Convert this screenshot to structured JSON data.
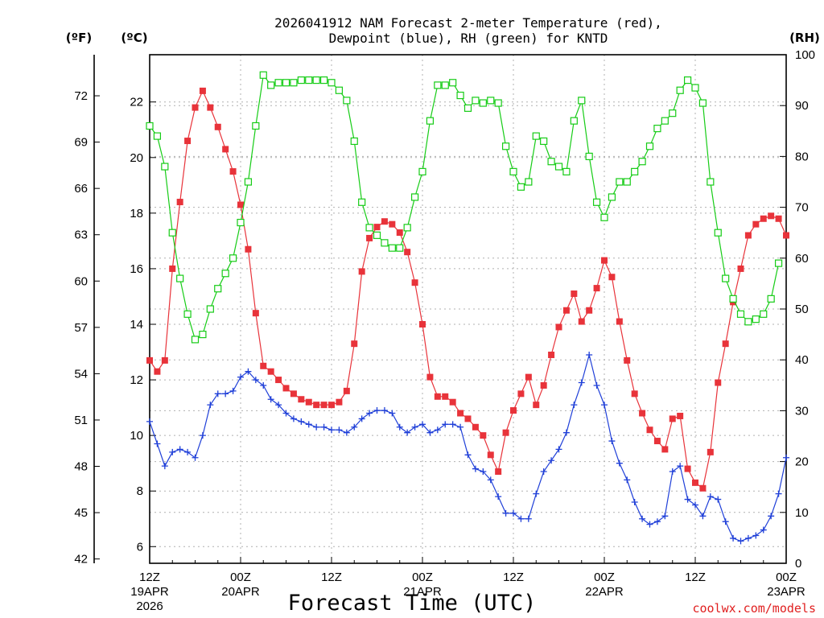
{
  "chart_data": {
    "type": "line",
    "title": "2026041912 NAM Forecast 2-meter Temperature (red),",
    "title_line2": "Dewpoint (blue), RH (green) for KNTD",
    "left_unit_f": "(ºF)",
    "left_unit_c": "(ºC)",
    "right_unit": "(RH)",
    "xlabel": "Forecast Time (UTC)",
    "credit": "coolwx.com/models",
    "x_range_hours": [
      0,
      84
    ],
    "x_ticks": [
      {
        "hour": 0,
        "lines": [
          "12Z",
          "19APR",
          "2026"
        ]
      },
      {
        "hour": 12,
        "lines": [
          "00Z",
          "20APR"
        ]
      },
      {
        "hour": 24,
        "lines": [
          "12Z"
        ]
      },
      {
        "hour": 36,
        "lines": [
          "00Z",
          "21APR"
        ]
      },
      {
        "hour": 48,
        "lines": [
          "12Z"
        ]
      },
      {
        "hour": 60,
        "lines": [
          "00Z",
          "22APR"
        ]
      },
      {
        "hour": 72,
        "lines": [
          "12Z"
        ]
      },
      {
        "hour": 84,
        "lines": [
          "00Z",
          "23APR"
        ]
      }
    ],
    "y_celsius": {
      "range": [
        5.4,
        23.7
      ],
      "ticks": [
        "6",
        "8",
        "10",
        "12",
        "14",
        "16",
        "18",
        "20",
        "22"
      ]
    },
    "y_fahrenheit": {
      "ticks": [
        "42",
        "45",
        "48",
        "51",
        "54",
        "57",
        "60",
        "63",
        "66",
        "69",
        "72"
      ]
    },
    "y_rh": {
      "range": [
        0,
        100
      ],
      "ticks": [
        "0",
        "10",
        "20",
        "30",
        "40",
        "50",
        "60",
        "70",
        "80",
        "90",
        "100"
      ]
    },
    "series": [
      {
        "name": "Temperature",
        "units": "C",
        "color": "#e8333a",
        "marker": "filled-square",
        "values": [
          12.7,
          12.3,
          12.7,
          16.0,
          18.4,
          20.6,
          21.8,
          22.4,
          21.8,
          21.1,
          20.3,
          19.5,
          18.3,
          16.7,
          14.4,
          12.5,
          12.3,
          12.0,
          11.7,
          11.5,
          11.3,
          11.2,
          11.1,
          11.1,
          11.1,
          11.2,
          11.6,
          13.3,
          15.9,
          17.1,
          17.5,
          17.7,
          17.6,
          17.3,
          16.6,
          15.5,
          14.0,
          12.1,
          11.4,
          11.4,
          11.2,
          10.8,
          10.6,
          10.3,
          10.0,
          9.3,
          8.7,
          10.1,
          10.9,
          11.5,
          12.1,
          11.1,
          11.8,
          12.9,
          13.9,
          14.5,
          15.1,
          14.1,
          14.5,
          15.3,
          16.3,
          15.7,
          14.1,
          12.7,
          11.5,
          10.8,
          10.2,
          9.8,
          9.5,
          10.6,
          10.7,
          8.8,
          8.3,
          8.1,
          9.4,
          11.9,
          13.3,
          14.8,
          16.0,
          17.2,
          17.6,
          17.8,
          17.9,
          17.8,
          17.2
        ]
      },
      {
        "name": "Dewpoint",
        "units": "C",
        "color": "#1f3fd8",
        "marker": "plus",
        "values": [
          10.5,
          9.7,
          8.9,
          9.4,
          9.5,
          9.4,
          9.2,
          10.0,
          11.1,
          11.5,
          11.5,
          11.6,
          12.1,
          12.3,
          12.0,
          11.8,
          11.3,
          11.1,
          10.8,
          10.6,
          10.5,
          10.4,
          10.3,
          10.3,
          10.2,
          10.2,
          10.1,
          10.3,
          10.6,
          10.8,
          10.9,
          10.9,
          10.8,
          10.3,
          10.1,
          10.3,
          10.4,
          10.1,
          10.2,
          10.4,
          10.4,
          10.3,
          9.3,
          8.8,
          8.7,
          8.4,
          7.8,
          7.2,
          7.2,
          7.0,
          7.0,
          7.9,
          8.7,
          9.1,
          9.5,
          10.1,
          11.1,
          11.9,
          12.9,
          11.8,
          11.1,
          9.8,
          9.0,
          8.4,
          7.6,
          7.0,
          6.8,
          6.9,
          7.1,
          8.7,
          8.9,
          7.7,
          7.5,
          7.1,
          7.8,
          7.7,
          6.9,
          6.3,
          6.2,
          6.3,
          6.4,
          6.6,
          7.1,
          7.9,
          9.2
        ]
      },
      {
        "name": "RH",
        "units": "%",
        "color": "#16cc16",
        "marker": "hollow-square",
        "values": [
          86,
          84,
          78,
          65,
          56,
          49,
          44,
          45,
          50,
          54,
          57,
          60,
          67,
          75,
          86,
          96,
          94,
          94.5,
          94.5,
          94.5,
          95,
          95,
          95,
          95,
          94.5,
          93,
          91,
          83,
          71,
          66,
          64.5,
          63,
          62,
          62,
          66,
          72,
          77,
          87,
          94,
          94,
          94.5,
          92,
          89.5,
          91,
          90.5,
          91,
          90.5,
          82,
          77,
          74,
          75,
          84,
          83,
          79,
          78,
          77,
          87,
          91,
          80,
          71,
          68,
          72,
          75,
          75,
          77,
          79,
          82,
          85.5,
          87,
          88.5,
          93,
          95,
          93.5,
          90.5,
          75,
          65,
          56,
          52,
          49,
          47.5,
          48,
          49,
          52,
          59
        ]
      }
    ]
  }
}
